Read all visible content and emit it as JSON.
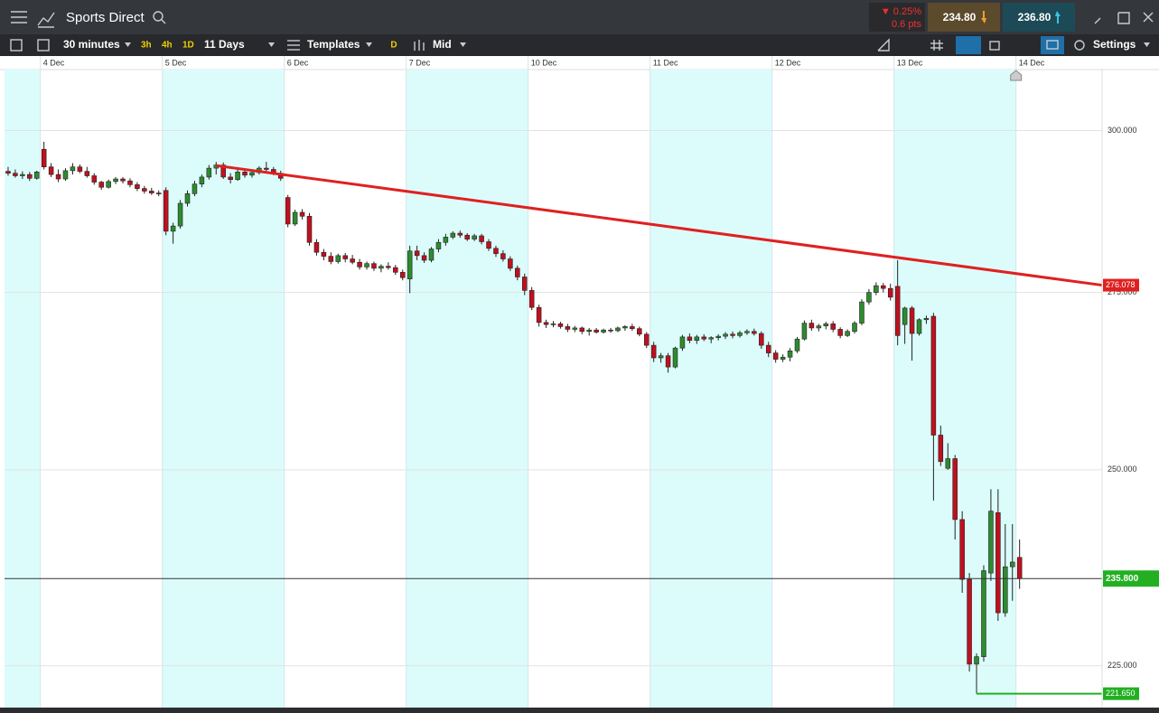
{
  "toolbar": {
    "title": "Sports Direct",
    "change_pct": "▼ 0.25%",
    "change_pts": "0.6 pts",
    "sell": "234.80",
    "buy": "236.80",
    "interval": "30 minutes",
    "quick_intervals": [
      "3h",
      "4h",
      "1D"
    ],
    "range": "11 Days",
    "templates": "Templates",
    "d_button": "D",
    "price_mode": "Mid",
    "settings": "Settings"
  },
  "chart_data": {
    "type": "candlestick",
    "log_scale": true,
    "up_color": "#2e8b2e",
    "down_color": "#c0101e",
    "xlim": [
      -0.5,
      152.5
    ],
    "xticks": [
      {
        "value": 5,
        "label": "4 Dec"
      },
      {
        "value": 22,
        "label": "5 Dec"
      },
      {
        "value": 39,
        "label": "6 Dec"
      },
      {
        "value": 56,
        "label": "7 Dec"
      },
      {
        "value": 73,
        "label": "10 Dec"
      },
      {
        "value": 90,
        "label": "11 Dec"
      },
      {
        "value": 107,
        "label": "12 Dec"
      },
      {
        "value": 124,
        "label": "13 Dec"
      },
      {
        "value": 141,
        "label": "14 Dec"
      }
    ],
    "ylim": [
      220,
      310
    ],
    "yticks": [
      {
        "value": 225,
        "label": "225.000"
      },
      {
        "value": 250,
        "label": "250.000"
      },
      {
        "value": 275,
        "label": "275.000"
      },
      {
        "value": 300,
        "label": "300.000"
      }
    ],
    "candles": [
      {
        "open": 293.5,
        "high": 294.2,
        "low": 292.8,
        "close": 293.2
      },
      {
        "open": 293.2,
        "high": 293.8,
        "low": 292.5,
        "close": 292.8
      },
      {
        "open": 292.8,
        "high": 293.5,
        "low": 292.3,
        "close": 293.0
      },
      {
        "open": 293.0,
        "high": 293.4,
        "low": 292.0,
        "close": 292.4
      },
      {
        "open": 292.4,
        "high": 293.6,
        "low": 292.2,
        "close": 293.4
      },
      {
        "open": 297.0,
        "high": 298.2,
        "low": 293.8,
        "close": 294.2
      },
      {
        "open": 294.2,
        "high": 294.8,
        "low": 292.6,
        "close": 293.0
      },
      {
        "open": 293.0,
        "high": 293.8,
        "low": 291.8,
        "close": 292.3
      },
      {
        "open": 292.3,
        "high": 294.0,
        "low": 292.0,
        "close": 293.6
      },
      {
        "open": 293.6,
        "high": 294.8,
        "low": 293.0,
        "close": 294.2
      },
      {
        "open": 294.2,
        "high": 294.6,
        "low": 293.2,
        "close": 293.5
      },
      {
        "open": 293.5,
        "high": 294.2,
        "low": 292.5,
        "close": 292.8
      },
      {
        "open": 292.8,
        "high": 293.2,
        "low": 291.4,
        "close": 291.8
      },
      {
        "open": 291.8,
        "high": 292.0,
        "low": 290.6,
        "close": 291.0
      },
      {
        "open": 291.0,
        "high": 292.2,
        "low": 290.8,
        "close": 291.9
      },
      {
        "open": 291.9,
        "high": 292.6,
        "low": 291.5,
        "close": 292.3
      },
      {
        "open": 292.3,
        "high": 292.6,
        "low": 291.6,
        "close": 292.0
      },
      {
        "open": 292.0,
        "high": 292.4,
        "low": 291.0,
        "close": 291.4
      },
      {
        "open": 291.4,
        "high": 291.8,
        "low": 290.4,
        "close": 290.8
      },
      {
        "open": 290.8,
        "high": 291.2,
        "low": 290.0,
        "close": 290.4
      },
      {
        "open": 290.4,
        "high": 290.9,
        "low": 289.8,
        "close": 290.1
      },
      {
        "open": 290.1,
        "high": 290.5,
        "low": 289.6,
        "close": 290.0
      },
      {
        "open": 290.5,
        "high": 291.0,
        "low": 283.6,
        "close": 284.2
      },
      {
        "open": 284.2,
        "high": 285.5,
        "low": 282.3,
        "close": 285.0
      },
      {
        "open": 285.0,
        "high": 289.0,
        "low": 284.6,
        "close": 288.5
      },
      {
        "open": 288.5,
        "high": 290.5,
        "low": 288.0,
        "close": 290.0
      },
      {
        "open": 290.0,
        "high": 292.0,
        "low": 289.6,
        "close": 291.5
      },
      {
        "open": 291.5,
        "high": 293.0,
        "low": 291.0,
        "close": 292.6
      },
      {
        "open": 292.6,
        "high": 294.5,
        "low": 292.2,
        "close": 294.0
      },
      {
        "open": 294.0,
        "high": 295.0,
        "low": 293.0,
        "close": 294.5
      },
      {
        "open": 294.5,
        "high": 294.9,
        "low": 292.3,
        "close": 292.6
      },
      {
        "open": 292.6,
        "high": 293.2,
        "low": 291.6,
        "close": 292.2
      },
      {
        "open": 292.2,
        "high": 293.8,
        "low": 292.0,
        "close": 293.4
      },
      {
        "open": 293.4,
        "high": 293.8,
        "low": 292.5,
        "close": 292.9
      },
      {
        "open": 292.9,
        "high": 293.6,
        "low": 292.5,
        "close": 293.3
      },
      {
        "open": 293.3,
        "high": 294.3,
        "low": 293.0,
        "close": 294.0
      },
      {
        "open": 294.0,
        "high": 295.0,
        "low": 293.5,
        "close": 293.8
      },
      {
        "open": 293.8,
        "high": 294.2,
        "low": 292.9,
        "close": 293.2
      },
      {
        "open": 293.2,
        "high": 293.6,
        "low": 292.0,
        "close": 292.4
      },
      {
        "open": 289.4,
        "high": 289.8,
        "low": 284.8,
        "close": 285.3
      },
      {
        "open": 285.3,
        "high": 287.5,
        "low": 285.0,
        "close": 287.1
      },
      {
        "open": 287.1,
        "high": 287.6,
        "low": 286.0,
        "close": 286.5
      },
      {
        "open": 286.5,
        "high": 287.0,
        "low": 282.0,
        "close": 282.5
      },
      {
        "open": 282.5,
        "high": 283.0,
        "low": 280.5,
        "close": 281.0
      },
      {
        "open": 281.0,
        "high": 281.5,
        "low": 279.8,
        "close": 280.4
      },
      {
        "open": 280.4,
        "high": 281.0,
        "low": 279.2,
        "close": 279.6
      },
      {
        "open": 279.6,
        "high": 280.8,
        "low": 279.3,
        "close": 280.5
      },
      {
        "open": 280.5,
        "high": 280.9,
        "low": 279.5,
        "close": 280.0
      },
      {
        "open": 280.0,
        "high": 280.6,
        "low": 279.2,
        "close": 279.5
      },
      {
        "open": 279.5,
        "high": 280.0,
        "low": 278.4,
        "close": 278.8
      },
      {
        "open": 278.8,
        "high": 279.6,
        "low": 278.4,
        "close": 279.3
      },
      {
        "open": 279.3,
        "high": 279.6,
        "low": 278.2,
        "close": 278.6
      },
      {
        "open": 278.6,
        "high": 279.2,
        "low": 278.0,
        "close": 278.9
      },
      {
        "open": 278.9,
        "high": 279.5,
        "low": 278.4,
        "close": 278.7
      },
      {
        "open": 278.7,
        "high": 279.1,
        "low": 277.6,
        "close": 278.0
      },
      {
        "open": 278.0,
        "high": 278.4,
        "low": 276.8,
        "close": 277.2
      },
      {
        "open": 277.0,
        "high": 282.0,
        "low": 274.9,
        "close": 281.2
      },
      {
        "open": 281.2,
        "high": 282.0,
        "low": 279.8,
        "close": 280.5
      },
      {
        "open": 280.5,
        "high": 281.0,
        "low": 279.4,
        "close": 279.8
      },
      {
        "open": 279.8,
        "high": 281.8,
        "low": 279.5,
        "close": 281.5
      },
      {
        "open": 281.5,
        "high": 283.0,
        "low": 281.0,
        "close": 282.5
      },
      {
        "open": 282.5,
        "high": 283.8,
        "low": 282.0,
        "close": 283.3
      },
      {
        "open": 283.3,
        "high": 284.2,
        "low": 283.0,
        "close": 283.9
      },
      {
        "open": 283.9,
        "high": 284.3,
        "low": 283.2,
        "close": 283.6
      },
      {
        "open": 283.6,
        "high": 283.9,
        "low": 282.7,
        "close": 283.0
      },
      {
        "open": 283.0,
        "high": 283.8,
        "low": 282.7,
        "close": 283.5
      },
      {
        "open": 283.5,
        "high": 283.8,
        "low": 282.2,
        "close": 282.6
      },
      {
        "open": 282.6,
        "high": 283.0,
        "low": 281.2,
        "close": 281.6
      },
      {
        "open": 281.6,
        "high": 282.0,
        "low": 280.3,
        "close": 280.8
      },
      {
        "open": 280.8,
        "high": 281.3,
        "low": 279.6,
        "close": 280.0
      },
      {
        "open": 280.0,
        "high": 280.4,
        "low": 278.2,
        "close": 278.6
      },
      {
        "open": 278.6,
        "high": 279.0,
        "low": 276.8,
        "close": 277.3
      },
      {
        "open": 277.3,
        "high": 277.8,
        "low": 274.6,
        "close": 275.3
      },
      {
        "open": 275.3,
        "high": 275.8,
        "low": 272.4,
        "close": 272.8
      },
      {
        "open": 272.8,
        "high": 273.2,
        "low": 270.0,
        "close": 270.6
      },
      {
        "open": 270.6,
        "high": 271.0,
        "low": 269.8,
        "close": 270.3
      },
      {
        "open": 270.3,
        "high": 270.8,
        "low": 269.9,
        "close": 270.4
      },
      {
        "open": 270.4,
        "high": 270.7,
        "low": 269.7,
        "close": 270.0
      },
      {
        "open": 270.0,
        "high": 270.4,
        "low": 269.2,
        "close": 269.6
      },
      {
        "open": 269.6,
        "high": 270.1,
        "low": 269.2,
        "close": 269.8
      },
      {
        "open": 269.8,
        "high": 270.0,
        "low": 268.9,
        "close": 269.3
      },
      {
        "open": 269.3,
        "high": 269.8,
        "low": 268.7,
        "close": 269.5
      },
      {
        "open": 269.5,
        "high": 269.8,
        "low": 269.0,
        "close": 269.2
      },
      {
        "open": 269.2,
        "high": 269.7,
        "low": 269.0,
        "close": 269.5
      },
      {
        "open": 269.5,
        "high": 269.8,
        "low": 269.1,
        "close": 269.4
      },
      {
        "open": 269.4,
        "high": 270.0,
        "low": 269.2,
        "close": 269.8
      },
      {
        "open": 269.8,
        "high": 270.2,
        "low": 269.4,
        "close": 270.0
      },
      {
        "open": 270.0,
        "high": 270.4,
        "low": 269.4,
        "close": 269.7
      },
      {
        "open": 269.7,
        "high": 270.0,
        "low": 268.6,
        "close": 268.9
      },
      {
        "open": 268.9,
        "high": 269.2,
        "low": 266.9,
        "close": 267.3
      },
      {
        "open": 267.3,
        "high": 267.8,
        "low": 264.9,
        "close": 265.5
      },
      {
        "open": 265.5,
        "high": 266.2,
        "low": 264.8,
        "close": 265.8
      },
      {
        "open": 265.8,
        "high": 266.2,
        "low": 263.4,
        "close": 264.2
      },
      {
        "open": 264.2,
        "high": 267.1,
        "low": 264.0,
        "close": 266.9
      },
      {
        "open": 266.9,
        "high": 268.8,
        "low": 266.5,
        "close": 268.5
      },
      {
        "open": 268.5,
        "high": 269.0,
        "low": 267.6,
        "close": 268.0
      },
      {
        "open": 268.0,
        "high": 268.8,
        "low": 267.5,
        "close": 268.5
      },
      {
        "open": 268.5,
        "high": 268.9,
        "low": 267.9,
        "close": 268.2
      },
      {
        "open": 268.2,
        "high": 268.6,
        "low": 267.6,
        "close": 268.4
      },
      {
        "open": 268.4,
        "high": 268.9,
        "low": 268.0,
        "close": 268.6
      },
      {
        "open": 268.6,
        "high": 269.2,
        "low": 268.2,
        "close": 268.9
      },
      {
        "open": 268.9,
        "high": 269.3,
        "low": 268.3,
        "close": 268.7
      },
      {
        "open": 268.7,
        "high": 269.4,
        "low": 268.4,
        "close": 269.1
      },
      {
        "open": 269.1,
        "high": 269.6,
        "low": 268.8,
        "close": 269.3
      },
      {
        "open": 269.3,
        "high": 269.7,
        "low": 268.7,
        "close": 269.0
      },
      {
        "open": 269.0,
        "high": 269.3,
        "low": 266.8,
        "close": 267.3
      },
      {
        "open": 267.3,
        "high": 267.8,
        "low": 265.6,
        "close": 266.2
      },
      {
        "open": 266.2,
        "high": 266.6,
        "low": 264.8,
        "close": 265.3
      },
      {
        "open": 265.3,
        "high": 266.0,
        "low": 264.9,
        "close": 265.6
      },
      {
        "open": 265.6,
        "high": 266.9,
        "low": 265.0,
        "close": 266.5
      },
      {
        "open": 266.5,
        "high": 268.5,
        "low": 266.2,
        "close": 268.2
      },
      {
        "open": 268.2,
        "high": 270.9,
        "low": 268.0,
        "close": 270.5
      },
      {
        "open": 270.5,
        "high": 271.0,
        "low": 269.4,
        "close": 269.8
      },
      {
        "open": 269.8,
        "high": 270.4,
        "low": 269.3,
        "close": 270.1
      },
      {
        "open": 270.1,
        "high": 270.7,
        "low": 269.6,
        "close": 270.4
      },
      {
        "open": 270.4,
        "high": 270.8,
        "low": 269.2,
        "close": 269.6
      },
      {
        "open": 269.6,
        "high": 269.9,
        "low": 268.3,
        "close": 268.7
      },
      {
        "open": 268.7,
        "high": 269.6,
        "low": 268.5,
        "close": 269.3
      },
      {
        "open": 269.3,
        "high": 270.8,
        "low": 269.0,
        "close": 270.5
      },
      {
        "open": 270.5,
        "high": 274.0,
        "low": 270.2,
        "close": 273.6
      },
      {
        "open": 273.6,
        "high": 275.5,
        "low": 273.2,
        "close": 275.0
      },
      {
        "open": 275.0,
        "high": 276.5,
        "low": 274.6,
        "close": 276.0
      },
      {
        "open": 276.0,
        "high": 276.4,
        "low": 275.0,
        "close": 275.6
      },
      {
        "open": 275.6,
        "high": 276.3,
        "low": 273.8,
        "close": 274.3
      },
      {
        "open": 275.9,
        "high": 279.8,
        "low": 267.3,
        "close": 268.7
      },
      {
        "open": 270.3,
        "high": 272.9,
        "low": 267.5,
        "close": 272.7
      },
      {
        "open": 272.7,
        "high": 273.0,
        "low": 265.1,
        "close": 269.0
      },
      {
        "open": 269.0,
        "high": 271.2,
        "low": 268.7,
        "close": 271.0
      },
      {
        "open": 271.0,
        "high": 271.6,
        "low": 270.4,
        "close": 271.2
      },
      {
        "open": 271.5,
        "high": 272.0,
        "low": 245.9,
        "close": 254.7
      },
      {
        "open": 254.7,
        "high": 256.0,
        "low": 250.5,
        "close": 251.1
      },
      {
        "open": 250.2,
        "high": 253.6,
        "low": 250.0,
        "close": 251.5
      },
      {
        "open": 251.5,
        "high": 252.0,
        "low": 240.8,
        "close": 243.4
      },
      {
        "open": 243.4,
        "high": 244.5,
        "low": 234.0,
        "close": 235.7
      },
      {
        "open": 235.7,
        "high": 236.5,
        "low": 224.3,
        "close": 225.2
      },
      {
        "open": 225.2,
        "high": 226.5,
        "low": 221.65,
        "close": 226.1
      },
      {
        "open": 226.1,
        "high": 237.5,
        "low": 225.5,
        "close": 236.8
      },
      {
        "open": 236.5,
        "high": 247.4,
        "low": 235.5,
        "close": 244.5
      },
      {
        "open": 244.3,
        "high": 247.4,
        "low": 230.5,
        "close": 231.5
      },
      {
        "open": 231.5,
        "high": 242.8,
        "low": 231.0,
        "close": 237.3
      },
      {
        "open": 237.3,
        "high": 242.8,
        "low": 233.0,
        "close": 237.9
      },
      {
        "open": 238.5,
        "high": 240.8,
        "low": 234.5,
        "close": 235.8
      }
    ],
    "trendline": {
      "x": [
        29,
        152.5
      ],
      "y": [
        294.4,
        276.078
      ],
      "color": "#e02020"
    },
    "price_line": {
      "value": 235.8,
      "label": "235.800",
      "color": "#22b022"
    },
    "support_line": {
      "x_start": 135,
      "value": 221.65,
      "label": "221.650",
      "color": "#22b022"
    }
  }
}
